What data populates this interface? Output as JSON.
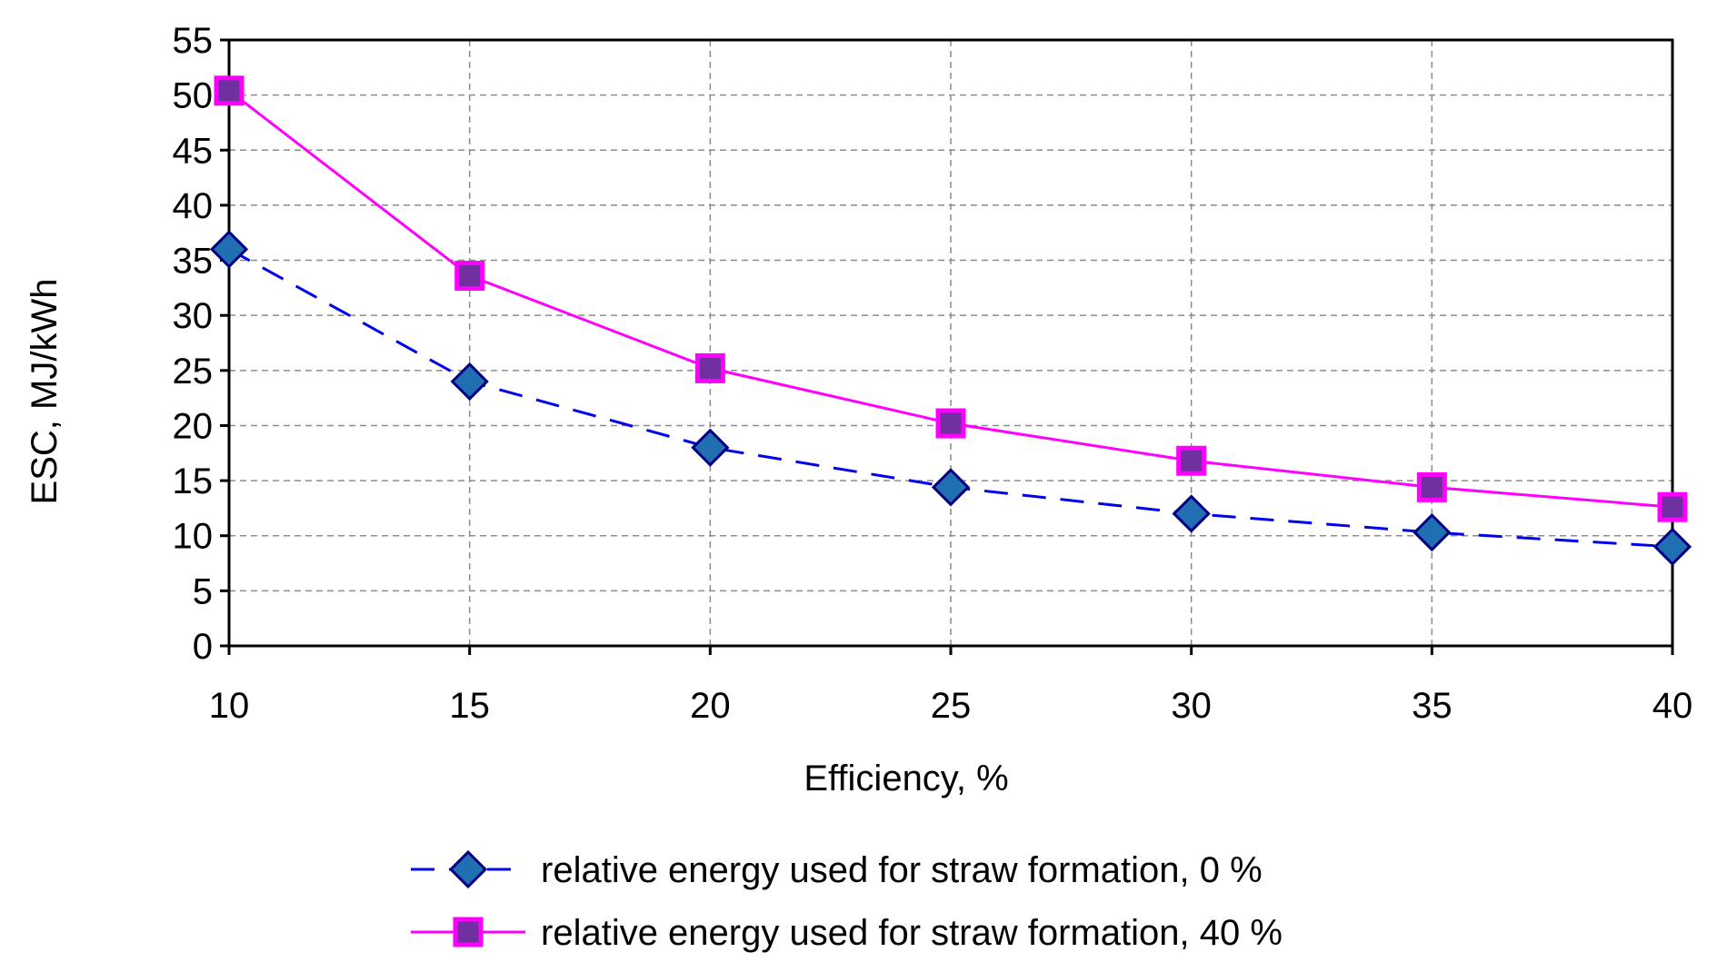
{
  "chart_data": {
    "type": "line",
    "title": "",
    "xlabel": "Efficiency, %",
    "ylabel": "ESC, MJ/kWh",
    "x": [
      10,
      15,
      20,
      25,
      30,
      35,
      40
    ],
    "xlim": [
      10,
      40
    ],
    "ylim": [
      0,
      55
    ],
    "xticks": [
      10,
      15,
      20,
      25,
      30,
      35,
      40
    ],
    "yticks": [
      0,
      5,
      10,
      15,
      20,
      25,
      30,
      35,
      40,
      45,
      50,
      55
    ],
    "grid": true,
    "legend_position": "bottom",
    "series": [
      {
        "name": "relative energy used for straw formation, 0 %",
        "values": [
          36.0,
          24.0,
          18.0,
          14.4,
          12.0,
          10.3,
          9.0
        ],
        "line_color": "#0000ee",
        "line_style": "dashed",
        "marker": "diamond",
        "marker_fill": "#1f6fb2",
        "marker_edge": "#000080"
      },
      {
        "name": "relative energy used for straw formation, 40 %",
        "values": [
          50.4,
          33.6,
          25.2,
          20.2,
          16.8,
          14.4,
          12.6
        ],
        "line_color": "#ff00ff",
        "line_style": "solid",
        "marker": "square",
        "marker_fill": "#7030a0",
        "marker_edge": "#ff00ff"
      }
    ]
  }
}
